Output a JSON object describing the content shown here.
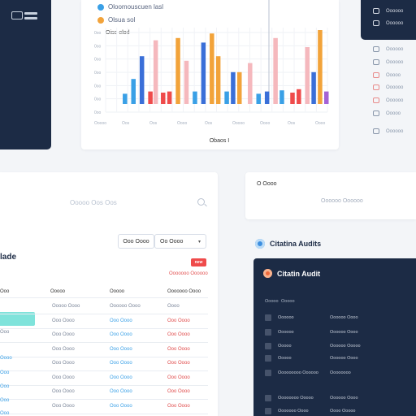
{
  "chart": {
    "legend": [
      "Oloomouscuen lasl",
      "Olsua sol"
    ],
    "label_upper": "Oiso elod",
    "caption": "Obaos I"
  },
  "chart_data": {
    "type": "bar",
    "title": "",
    "xlabel": "",
    "ylabel": "",
    "categories": [
      "Ooooo",
      "Oos",
      "Oos",
      "Oooo",
      "Oos",
      "Ooooo",
      "Oooo",
      "Oos",
      "Oooo"
    ],
    "yticks": [
      "0oo",
      "0oo",
      "0oo",
      "0oo",
      "0oo",
      "0oo",
      "0oo"
    ],
    "ylim": [
      0,
      7
    ],
    "grid": true,
    "bars": [
      {
        "x": 0.05,
        "v": 0.9,
        "c": "#3aa0e6"
      },
      {
        "x": 0.09,
        "v": 2.2,
        "c": "#3aa0e6"
      },
      {
        "x": 0.13,
        "v": 4.2,
        "c": "#3a6fd8"
      },
      {
        "x": 0.17,
        "v": 1.1,
        "c": "#ef4b4b"
      },
      {
        "x": 0.195,
        "v": 5.6,
        "c": "#f5b8bd"
      },
      {
        "x": 0.23,
        "v": 1.0,
        "c": "#ef4b4b"
      },
      {
        "x": 0.26,
        "v": 1.1,
        "c": "#ef4b4b"
      },
      {
        "x": 0.3,
        "v": 5.8,
        "c": "#f2a33a"
      },
      {
        "x": 0.34,
        "v": 3.8,
        "c": "#f5b8bd"
      },
      {
        "x": 0.38,
        "v": 1.1,
        "c": "#3aa0e6"
      },
      {
        "x": 0.42,
        "v": 5.4,
        "c": "#3a6fd8"
      },
      {
        "x": 0.46,
        "v": 6.2,
        "c": "#f2a33a"
      },
      {
        "x": 0.49,
        "v": 4.2,
        "c": "#f2a33a"
      },
      {
        "x": 0.53,
        "v": 1.1,
        "c": "#3aa0e6"
      },
      {
        "x": 0.56,
        "v": 2.8,
        "c": "#3a6fd8"
      },
      {
        "x": 0.59,
        "v": 2.8,
        "c": "#f2a33a"
      },
      {
        "x": 0.64,
        "v": 3.6,
        "c": "#f5b8bd"
      },
      {
        "x": 0.68,
        "v": 0.9,
        "c": "#3aa0e6"
      },
      {
        "x": 0.72,
        "v": 1.1,
        "c": "#3a6fd8"
      },
      {
        "x": 0.76,
        "v": 5.8,
        "c": "#f5b8bd"
      },
      {
        "x": 0.79,
        "v": 1.2,
        "c": "#3aa0e6"
      },
      {
        "x": 0.84,
        "v": 1.0,
        "c": "#ef4b4b"
      },
      {
        "x": 0.87,
        "v": 1.3,
        "c": "#ef4b4b"
      },
      {
        "x": 0.91,
        "v": 5.0,
        "c": "#f5b8bd"
      },
      {
        "x": 0.94,
        "v": 2.8,
        "c": "#3a6fd8"
      },
      {
        "x": 0.97,
        "v": 6.5,
        "c": "#f2a33a"
      },
      {
        "x": 1.0,
        "v": 1.1,
        "c": "#a463d6"
      }
    ]
  },
  "right_menu": {
    "items": [
      {
        "label": "Oooooo"
      },
      {
        "label": "Oooooo"
      },
      {
        "label": "Oooooo"
      },
      {
        "label": "Oooooo"
      },
      {
        "label": "Ooooo"
      },
      {
        "label": "Oooooo"
      },
      {
        "label": "Oooooo"
      },
      {
        "label": "Ooooo"
      },
      {
        "label": "Oooooo"
      }
    ]
  },
  "search": {
    "placeholder": "Ooooo Oos Oos"
  },
  "filters": {
    "a": "Ooo Oooo",
    "b": "Oo Oooo"
  },
  "table": {
    "title": "lade",
    "badge": "new",
    "link": "Ooooooo Oooooo",
    "headers": [
      "Ooo",
      "Ooooo",
      "Ooooo",
      "Ooooooo Oooo"
    ],
    "rows": [
      [
        "Ooooo Oooo",
        "Oooooo Oooo",
        "Oooo"
      ],
      [
        "Ooo Oooo",
        "Ooo Oooo",
        "Ooo Oooo"
      ],
      [
        "Ooo Oooo",
        "Ooo Oooo",
        "Ooo Oooo"
      ],
      [
        "Ooo Oooo",
        "Ooo Oooo",
        "Ooo Oooo"
      ],
      [
        "Ooo Oooo",
        "Ooo Oooo",
        "Ooo Oooo"
      ],
      [
        "Ooo Oooo",
        "Ooo Oooo",
        "Ooo Oooo"
      ],
      [
        "Ooo Oooo",
        "Ooo Oooo",
        "Ooo Oooo"
      ],
      [
        "Ooo Oooo",
        "Ooo Oooo",
        "Ooo Oooo"
      ]
    ],
    "left_labels": [
      "Ooo",
      "Oooo",
      "Ooo",
      "Ooo",
      "Ooo",
      "Ooo"
    ]
  },
  "info_card": {
    "title": "O Oooo",
    "subtitle": "Oooooo Oooooo"
  },
  "audit": {
    "header": "Citatina Audits",
    "panel_title": "Citatin Audit",
    "col_a": "Ooooo",
    "col_b": "Ooooo",
    "rows": [
      {
        "a": "Oooooo",
        "b": "Oooooo Oooo"
      },
      {
        "a": "Oooooo",
        "b": "Oooooo Oooo"
      },
      {
        "a": "Ooooo",
        "b": "Oooooo Ooooo"
      },
      {
        "a": "Ooooo",
        "b": "Oooooo Oooo"
      },
      {
        "a": "Ooooooooo Oooooo",
        "b": "Oooooooo"
      },
      {
        "a": "Oooooooo Ooooo",
        "b": "Oooooo Oooo"
      },
      {
        "a": "Ooooooo Oooo",
        "b": "Oooo Ooooo"
      }
    ]
  }
}
